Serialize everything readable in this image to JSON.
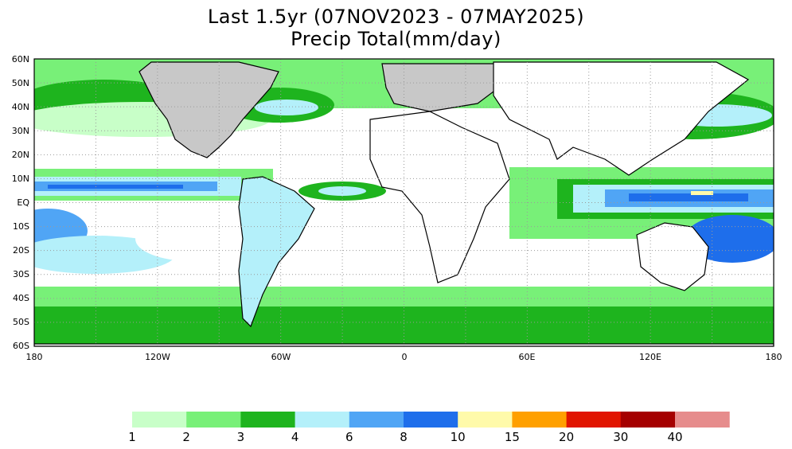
{
  "title": {
    "line1": "Last 1.5yr (07NOV2023 - 07MAY2025)",
    "line2": "Precip Total(mm/day)"
  },
  "map": {
    "projection": "cylindrical-equidistant",
    "lon_range": [
      -180,
      180
    ],
    "lat_range": [
      -60,
      60
    ],
    "lat_labels": [
      "60N",
      "50N",
      "40N",
      "30N",
      "20N",
      "10N",
      "EQ",
      "10S",
      "20S",
      "30S",
      "40S",
      "50S",
      "60S"
    ],
    "lon_labels": [
      "180",
      "120W",
      "60W",
      "0",
      "60E",
      "120E",
      "180"
    ],
    "grid": "dotted",
    "colors": {
      "ocean_dry": "#ffffff",
      "land_dry": "#ffffff",
      "land_shade": "#b4b4b4",
      "coast": "#000000",
      "border": "#888888"
    }
  },
  "colorbar": {
    "colors": [
      "#c8ffc8",
      "#78f078",
      "#1eb41e",
      "#b4f0fa",
      "#50a5f5",
      "#1e6eeb",
      "#fffaaa",
      "#ffa000",
      "#e11400",
      "#a50000",
      "#e68c8c"
    ],
    "labels": [
      "1",
      "2",
      "3",
      "4",
      "6",
      "8",
      "10",
      "15",
      "20",
      "30",
      "40"
    ]
  }
}
